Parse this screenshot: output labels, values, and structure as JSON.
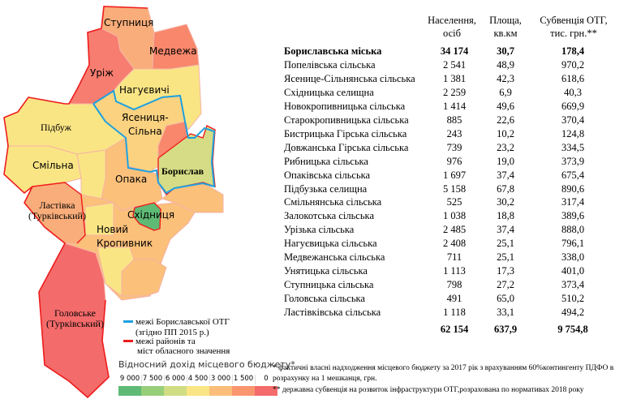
{
  "map": {
    "regions": [
      {
        "name": "Ступниця",
        "color": "#f9ad7a"
      },
      {
        "name": "Медвежа",
        "color": "#f8876c"
      },
      {
        "name": "Уріж",
        "color": "#f77d70"
      },
      {
        "name": "Нагуєвичі",
        "color": "#fae585"
      },
      {
        "name": "Ясениця-\nСільна",
        "color": "#fbd27f"
      },
      {
        "name": "Підбуж",
        "color": "#fae585"
      },
      {
        "name": "Смільна",
        "color": "#fae585"
      },
      {
        "name": "Опака",
        "color": "#fbc07a"
      },
      {
        "name": "Борислав",
        "color": "#d5dc85"
      },
      {
        "name": "Ластівка\n(Турківський)",
        "color": "#f9ad7a"
      },
      {
        "name": "Східниця",
        "color": "#5fba76"
      },
      {
        "name": "Новий\nКропивник",
        "color": "#fbc07a"
      },
      {
        "name": "Головське\n(Турківський)",
        "color": "#f46b6b"
      }
    ],
    "otg_border_color": "#1ea0e0",
    "district_border_color": "#ee1c1c"
  },
  "legend": {
    "otg_border": "межі Бориславської ОТГ",
    "otg_border_note": "(згідно ПП 2015 р.)",
    "district_border": "межі районів та",
    "district_border_2": "міст обласного значення",
    "scale_title": "Відносний дохід місцевого бюджету*",
    "scale": [
      {
        "label": "9 000",
        "color": "#5fba76"
      },
      {
        "label": "7 500",
        "color": "#97ce7a"
      },
      {
        "label": "6 000",
        "color": "#d0dd83"
      },
      {
        "label": "4 500",
        "color": "#fae585"
      },
      {
        "label": "3 000",
        "color": "#fbbe7a"
      },
      {
        "label": "1 500",
        "color": "#f9966f"
      },
      {
        "label": "0",
        "color": "#f46b6b"
      }
    ]
  },
  "table": {
    "headers": [
      "Населення,\nосіб",
      "Площа,\nкв.км",
      "Субвенція ОТГ,\nтис. грн.**"
    ],
    "rows": [
      [
        "Бориславська міська",
        "34 174",
        "30,7",
        "178,4"
      ],
      [
        "Попелівська сільська",
        "2 541",
        "48,9",
        "970,2"
      ],
      [
        "Ясенице-Сільнянська сільська",
        "1 381",
        "42,3",
        "618,6"
      ],
      [
        "Східницька селищна",
        "2 259",
        "6,9",
        "40,3"
      ],
      [
        "Новокропивницька сільська",
        "1 414",
        "49,6",
        "669,9"
      ],
      [
        "Старокропивницька сільська",
        "885",
        "22,6",
        "370,4"
      ],
      [
        "Бистрицька Гірська сільська",
        "243",
        "10,2",
        "124,8"
      ],
      [
        "Довжанська Гірська сільська",
        "739",
        "23,2",
        "334,5"
      ],
      [
        "Рибницька сільська",
        "976",
        "19,0",
        "373,9"
      ],
      [
        "Опаківська сільська",
        "1 697",
        "37,4",
        "675,4"
      ],
      [
        "Підбузька селищна",
        "5 158",
        "67,8",
        "890,6"
      ],
      [
        "Смільнянська сільська",
        "525",
        "30,2",
        "317,4"
      ],
      [
        "Залокотська сільська",
        "1 038",
        "18,8",
        "389,6"
      ],
      [
        "Урізька сільська",
        "2 485",
        "37,4",
        "888,0"
      ],
      [
        "Нагуєвицька сільська",
        "2 408",
        "25,1",
        "796,1"
      ],
      [
        "Медвежанська сільська",
        "711",
        "25,1",
        "338,0"
      ],
      [
        "Унятицька сільська",
        "1 113",
        "17,3",
        "401,0"
      ],
      [
        "Ступницька сільська",
        "798",
        "27,2",
        "373,4"
      ],
      [
        "Головська сільська",
        "491",
        "65,0",
        "510,2"
      ],
      [
        "Ластівківська сільська",
        "1 118",
        "33,1",
        "494,2"
      ]
    ],
    "totals": [
      "62 154",
      "637,9",
      "9 754,8"
    ]
  },
  "footnotes": [
    "* фактичні власні надходження місцевого бюджету   за 2017 рік з врахуванням 60%контингенту ПДФО в розрахунку на 1 мешканця, грн.",
    "** державна субвенція на розвиток інфраструктури ОТГ,розрахована по нормативах 2018 року"
  ]
}
